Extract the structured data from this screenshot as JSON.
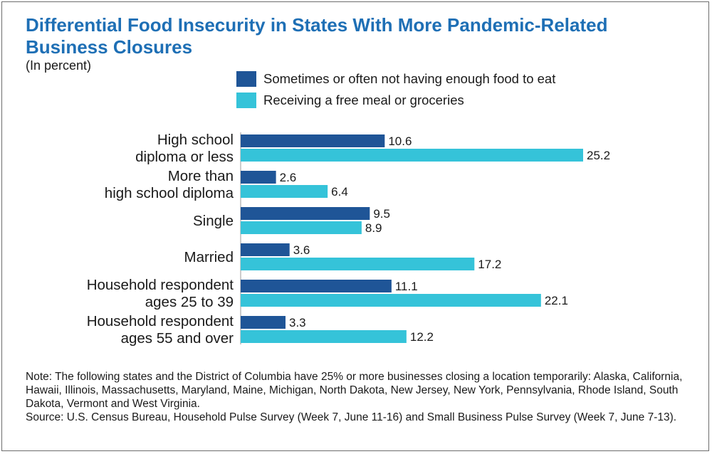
{
  "colors": {
    "series1": "#1f5597",
    "series2": "#35c3d9",
    "title": "#1e6fb5",
    "border": "#6d6d6d"
  },
  "header": {
    "title": "Differential Food Insecurity in States With More Pandemic-Related Business Closures",
    "subtitle": "(In percent)"
  },
  "legend": {
    "items": [
      {
        "label": "Sometimes or often not having enough food to eat",
        "color": "#1f5597"
      },
      {
        "label": "Receiving a free meal or groceries",
        "color": "#35c3d9"
      }
    ]
  },
  "chart_data": {
    "type": "bar",
    "orientation": "horizontal",
    "categories": [
      [
        "High school",
        "diploma or less"
      ],
      [
        "More than",
        "high school diploma"
      ],
      [
        "Single"
      ],
      [
        "Married"
      ],
      [
        "Household respondent",
        "ages 25 to 39"
      ],
      [
        "Household respondent",
        "ages 55 and over"
      ]
    ],
    "series": [
      {
        "name": "Sometimes or often not having enough food to eat",
        "values": [
          10.6,
          2.6,
          9.5,
          3.6,
          11.1,
          3.3
        ]
      },
      {
        "name": "Receiving a free meal or groceries",
        "values": [
          25.2,
          6.4,
          8.9,
          17.2,
          22.1,
          12.2
        ]
      }
    ],
    "value_labels": [
      [
        "10.6",
        "2.6",
        "9.5",
        "3.6",
        "11.1",
        "3.3"
      ],
      [
        "25.2",
        "6.4",
        "8.9",
        "17.2",
        "22.1",
        "12.2"
      ]
    ],
    "xlim": [
      0,
      25.2
    ],
    "grid": false,
    "axis_ticks": false,
    "legend_position": "top"
  },
  "footnote": {
    "note": "Note: The following states and the District of Columbia have 25% or more businesses closing a location temporarily: Alaska, California, Hawaii, Illinois, Massachusetts, Maryland, Maine, Michigan, North Dakota, New Jersey, New York, Pennsylvania, Rhode Island, South Dakota, Vermont and West Virginia.",
    "source": "Source: U.S. Census Bureau, Household Pulse Survey (Week 7, June 11-16) and Small Business Pulse Survey (Week 7, June 7-13)."
  }
}
